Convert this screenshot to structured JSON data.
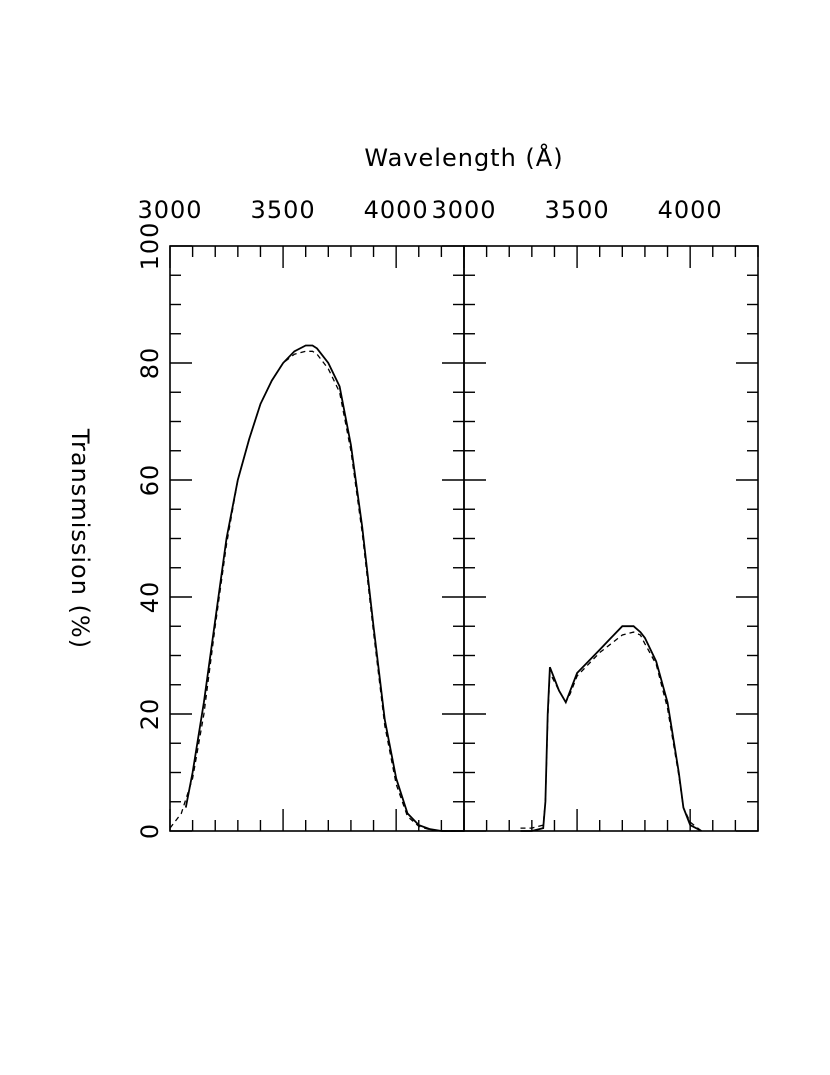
{
  "chart_data": [
    {
      "type": "line",
      "panel": "left",
      "xlabel": "Wavelength (Å)",
      "ylabel": "Transmission (%)",
      "xlim": [
        3000,
        4300
      ],
      "ylim": [
        0,
        100
      ],
      "x_ticks": [
        3000,
        3500,
        4000
      ],
      "y_ticks": [
        0,
        20,
        40,
        60,
        80,
        100
      ],
      "grid": false,
      "series": [
        {
          "style": "solid",
          "x": [
            3070,
            3100,
            3150,
            3200,
            3250,
            3300,
            3350,
            3400,
            3450,
            3500,
            3550,
            3600,
            3630,
            3650,
            3700,
            3750,
            3800,
            3850,
            3900,
            3950,
            4000,
            4050,
            4100,
            4150,
            4200,
            4300
          ],
          "y": [
            4,
            10,
            22,
            36,
            50,
            60,
            67,
            73,
            77,
            80,
            82,
            83,
            83,
            82.5,
            80,
            76,
            66,
            52,
            35,
            19,
            9,
            3,
            1,
            0.3,
            0,
            0
          ]
        },
        {
          "style": "dashed",
          "x": [
            3000,
            3050,
            3100,
            3150,
            3200,
            3250,
            3300,
            3350,
            3400,
            3450,
            3500,
            3550,
            3600,
            3630,
            3650,
            3700,
            3750,
            3800,
            3850,
            3900,
            3950,
            4000,
            4050,
            4100,
            4150,
            4200,
            4300
          ],
          "y": [
            0.5,
            3,
            9,
            20,
            35,
            49,
            60,
            67,
            73,
            77,
            80,
            81.5,
            82,
            82,
            81.5,
            79,
            75,
            65,
            51,
            34,
            18,
            8,
            2.5,
            0.8,
            0.2,
            0,
            0
          ]
        }
      ]
    },
    {
      "type": "line",
      "panel": "right",
      "xlim": [
        3000,
        4300
      ],
      "ylim": [
        0,
        100
      ],
      "x_ticks": [
        3000,
        3500,
        4000
      ],
      "grid": false,
      "series": [
        {
          "style": "solid",
          "x": [
            3250,
            3300,
            3350,
            3360,
            3370,
            3380,
            3400,
            3420,
            3450,
            3470,
            3500,
            3550,
            3600,
            3650,
            3700,
            3750,
            3780,
            3800,
            3850,
            3900,
            3950,
            3970,
            4000,
            4050
          ],
          "y": [
            0,
            0,
            0.5,
            5,
            20,
            28,
            26,
            24,
            22,
            24,
            27,
            29,
            31,
            33,
            35,
            35,
            34,
            33,
            29,
            22,
            10,
            4,
            1,
            0
          ]
        },
        {
          "style": "dashed",
          "x": [
            3250,
            3300,
            3350,
            3360,
            3370,
            3380,
            3400,
            3420,
            3450,
            3470,
            3500,
            3550,
            3600,
            3650,
            3700,
            3750,
            3780,
            3800,
            3850,
            3900,
            3950,
            3970,
            4000,
            4050
          ],
          "y": [
            0.5,
            0.5,
            1,
            5,
            19,
            27,
            25.5,
            24,
            22,
            23.5,
            26.5,
            28.5,
            30.5,
            32,
            33.5,
            34,
            33.5,
            32,
            28.5,
            21,
            9.5,
            4,
            1.5,
            0
          ]
        }
      ]
    }
  ]
}
